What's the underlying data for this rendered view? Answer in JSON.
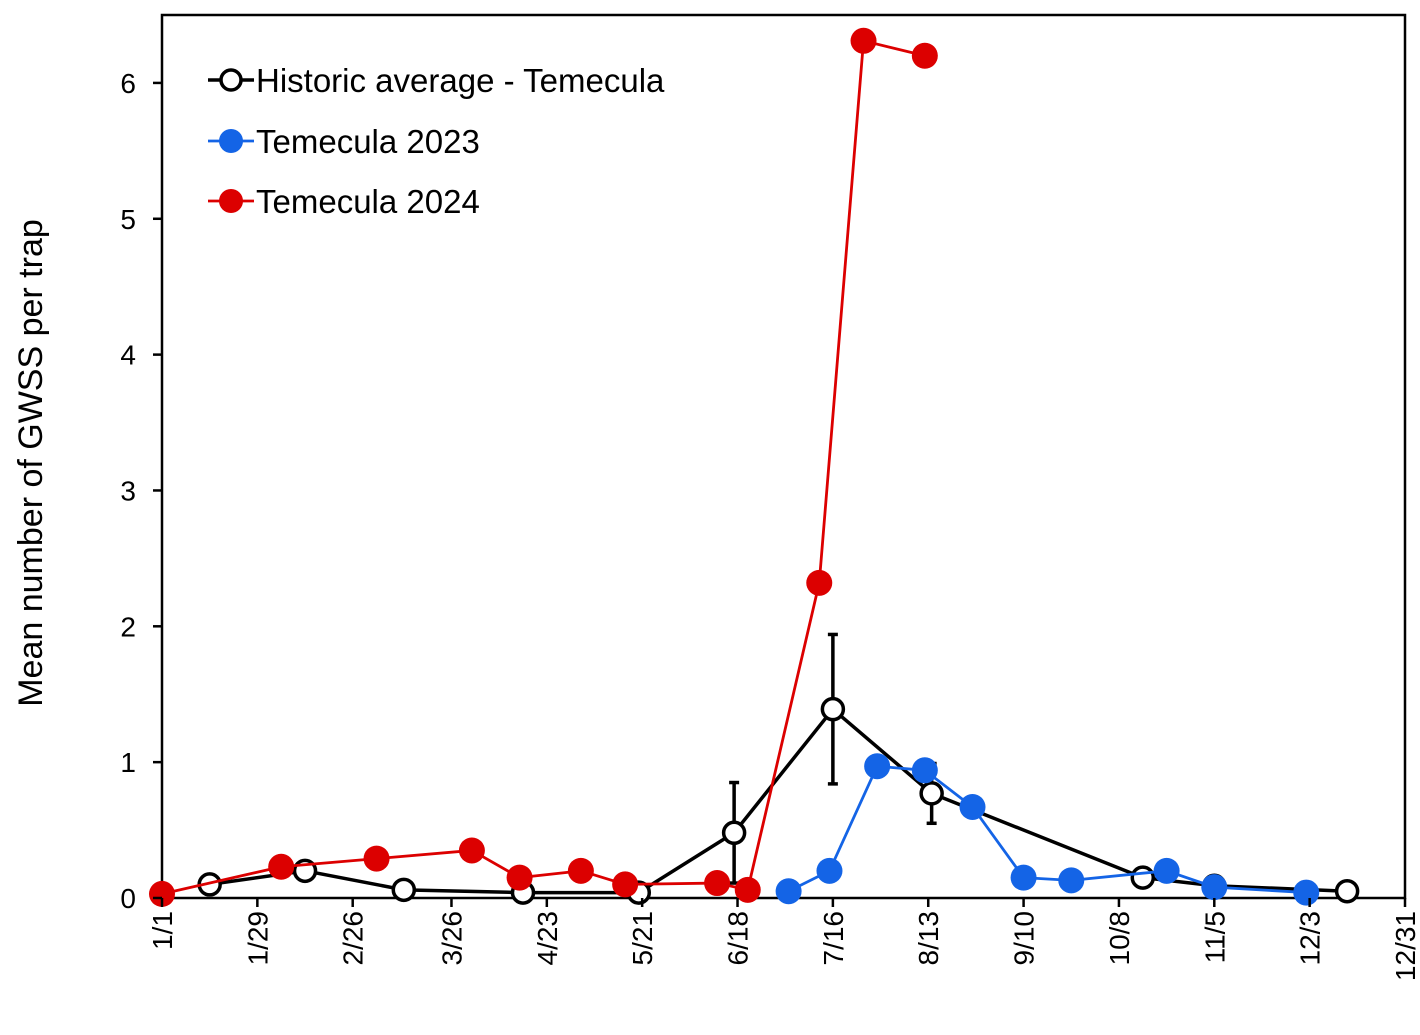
{
  "chart_data": {
    "type": "line",
    "title": "",
    "xlabel": "",
    "ylabel": "Mean number of GWSS per trap",
    "x_tick_labels": [
      "1/1",
      "1/29",
      "2/26",
      "3/26",
      "4/23",
      "5/21",
      "6/18",
      "7/16",
      "8/13",
      "9/10",
      "10/8",
      "11/5",
      "12/3",
      "12/31"
    ],
    "y_ticks": [
      0,
      1,
      2,
      3,
      4,
      5,
      6
    ],
    "ylim": [
      0,
      6.5
    ],
    "xlim": [
      "1/1",
      "12/31"
    ],
    "grid": false,
    "legend_position": "top-left",
    "series": [
      {
        "name": "Historic average - Temecula",
        "color": "#000000",
        "marker": "open-circle",
        "x": [
          "1/15",
          "2/12",
          "3/12",
          "4/16",
          "5/20",
          "6/17",
          "7/16",
          "8/14",
          "10/15",
          "11/5",
          "12/14"
        ],
        "values": [
          0.1,
          0.2,
          0.06,
          0.04,
          0.04,
          0.48,
          1.39,
          0.77,
          0.15,
          0.09,
          0.05
        ],
        "error": [
          null,
          null,
          null,
          null,
          null,
          0.37,
          0.55,
          0.22,
          null,
          null,
          null
        ]
      },
      {
        "name": "Temecula 2023",
        "color": "#1464e6",
        "marker": "filled-circle",
        "x": [
          "7/3",
          "7/15",
          "7/29",
          "8/12",
          "8/26",
          "9/10",
          "9/24",
          "10/22",
          "11/5",
          "12/2"
        ],
        "values": [
          0.05,
          0.2,
          0.97,
          0.94,
          0.67,
          0.15,
          0.13,
          0.2,
          0.08,
          0.04
        ]
      },
      {
        "name": "Temecula 2024",
        "color": "#dc0000",
        "marker": "filled-circle",
        "x": [
          "1/1",
          "2/5",
          "3/4",
          "4/1",
          "4/15",
          "5/3",
          "5/16",
          "6/12",
          "6/21",
          "7/12",
          "7/25",
          "8/12"
        ],
        "values": [
          0.03,
          0.23,
          0.29,
          0.35,
          0.15,
          0.2,
          0.1,
          0.11,
          0.06,
          2.32,
          6.31,
          6.2
        ]
      }
    ]
  }
}
